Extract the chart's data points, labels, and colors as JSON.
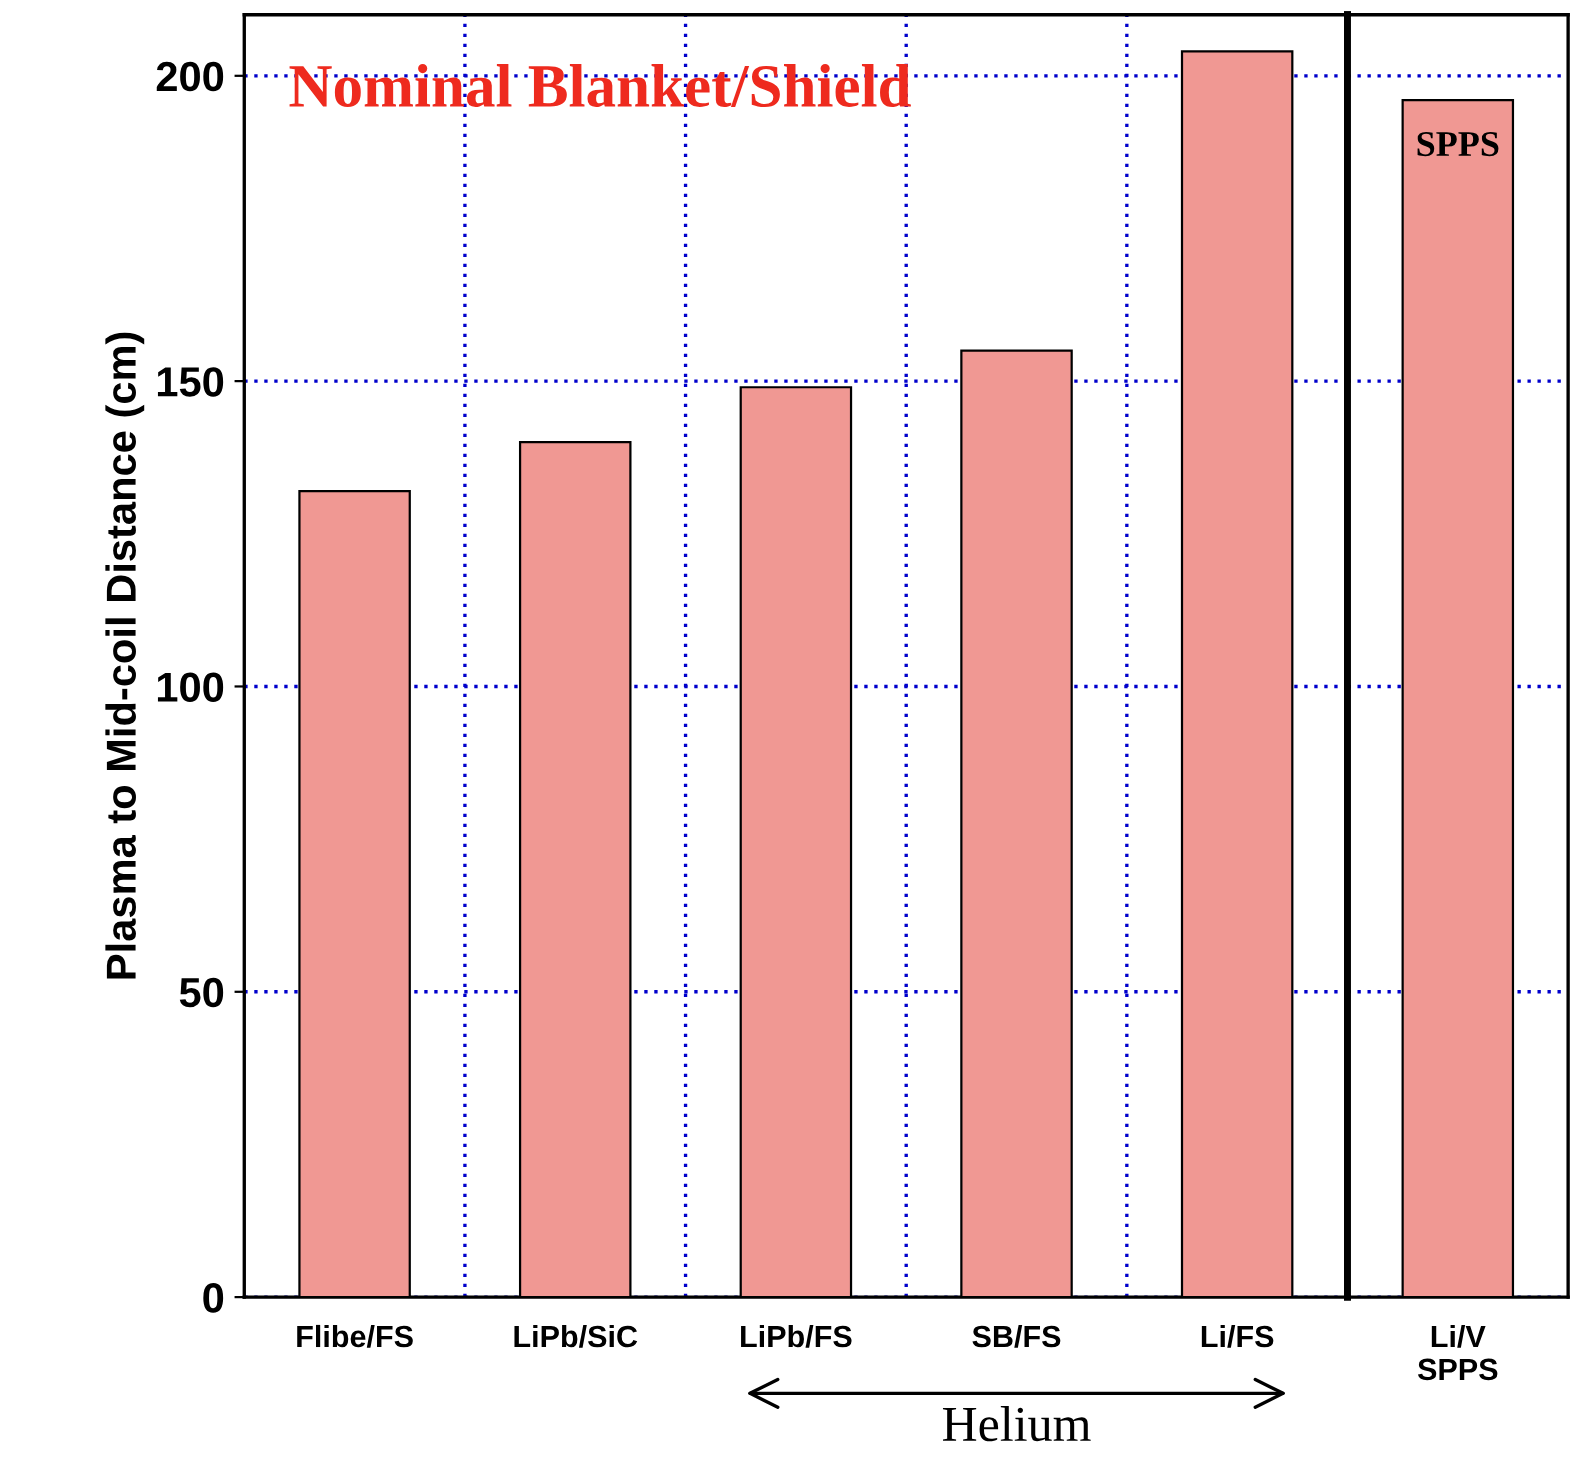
{
  "chart_data": [
    {
      "type": "bar",
      "ylabel": "Plasma to Mid-coil Distance (cm)",
      "categories": [
        "Flibe/FS",
        "LiPb/SiC",
        "LiPb/FS",
        "SB/FS",
        "Li/FS"
      ],
      "values": [
        132,
        140,
        149,
        155,
        204
      ],
      "color": "#f09893",
      "ylim": [
        0,
        210
      ],
      "yticks": [
        0,
        50,
        100,
        150,
        200
      ],
      "grid": true,
      "annotations": [
        "Nominal Blanket/Shield",
        "Helium"
      ]
    },
    {
      "type": "bar",
      "categories": [
        "Li/V\nSPPS"
      ],
      "values": [
        196
      ],
      "color": "#f09893",
      "ylim": [
        0,
        210
      ],
      "yticks": [
        0,
        50,
        100,
        150,
        200
      ],
      "grid": "y",
      "tick_labels": "x",
      "annotations": [
        {
          "text": "SPPS",
          "x": "Li/V\nSPPS",
          "y": 196
        }
      ]
    }
  ]
}
